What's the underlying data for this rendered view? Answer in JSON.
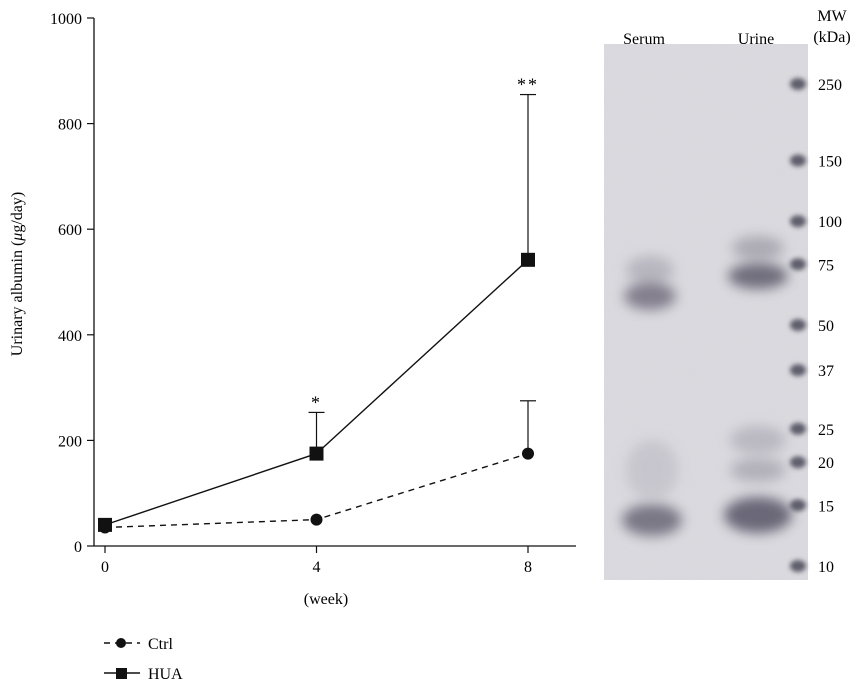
{
  "chart_data": {
    "type": "line",
    "title": "",
    "xlabel": "(week)",
    "ylabel": "Urinary albumin (μg/day)",
    "ylabel_parts": [
      "Urinary albumin (",
      "μ",
      "g/day)"
    ],
    "x": [
      0,
      4,
      8
    ],
    "xticks": [
      "0",
      "4",
      "8"
    ],
    "ylim": [
      0,
      1000
    ],
    "yticks": [
      "0",
      "200",
      "400",
      "600",
      "800",
      "1000"
    ],
    "series": [
      {
        "name": "Ctrl",
        "values": [
          35,
          50,
          175
        ],
        "error_upper": [
          null,
          null,
          275
        ],
        "style": "dashed",
        "marker": "circle"
      },
      {
        "name": "HUA",
        "values": [
          40,
          175,
          542
        ],
        "error_upper": [
          null,
          253,
          855
        ],
        "style": "solid",
        "marker": "square"
      }
    ],
    "annotations": [
      {
        "text": "*",
        "x": 4,
        "y": 253
      },
      {
        "text": "**",
        "x": 8,
        "y": 855
      }
    ],
    "legend_position": "bottom-left"
  },
  "gel": {
    "lanes": [
      "Serum",
      "Urine"
    ],
    "mw_header": [
      "MW",
      "(kDa)"
    ],
    "markers": [
      "250",
      "150",
      "100",
      "75",
      "50",
      "37",
      "25",
      "20",
      "15",
      "10"
    ],
    "markers_kda": [
      250,
      150,
      100,
      75,
      50,
      37,
      25,
      20,
      15,
      10
    ]
  }
}
